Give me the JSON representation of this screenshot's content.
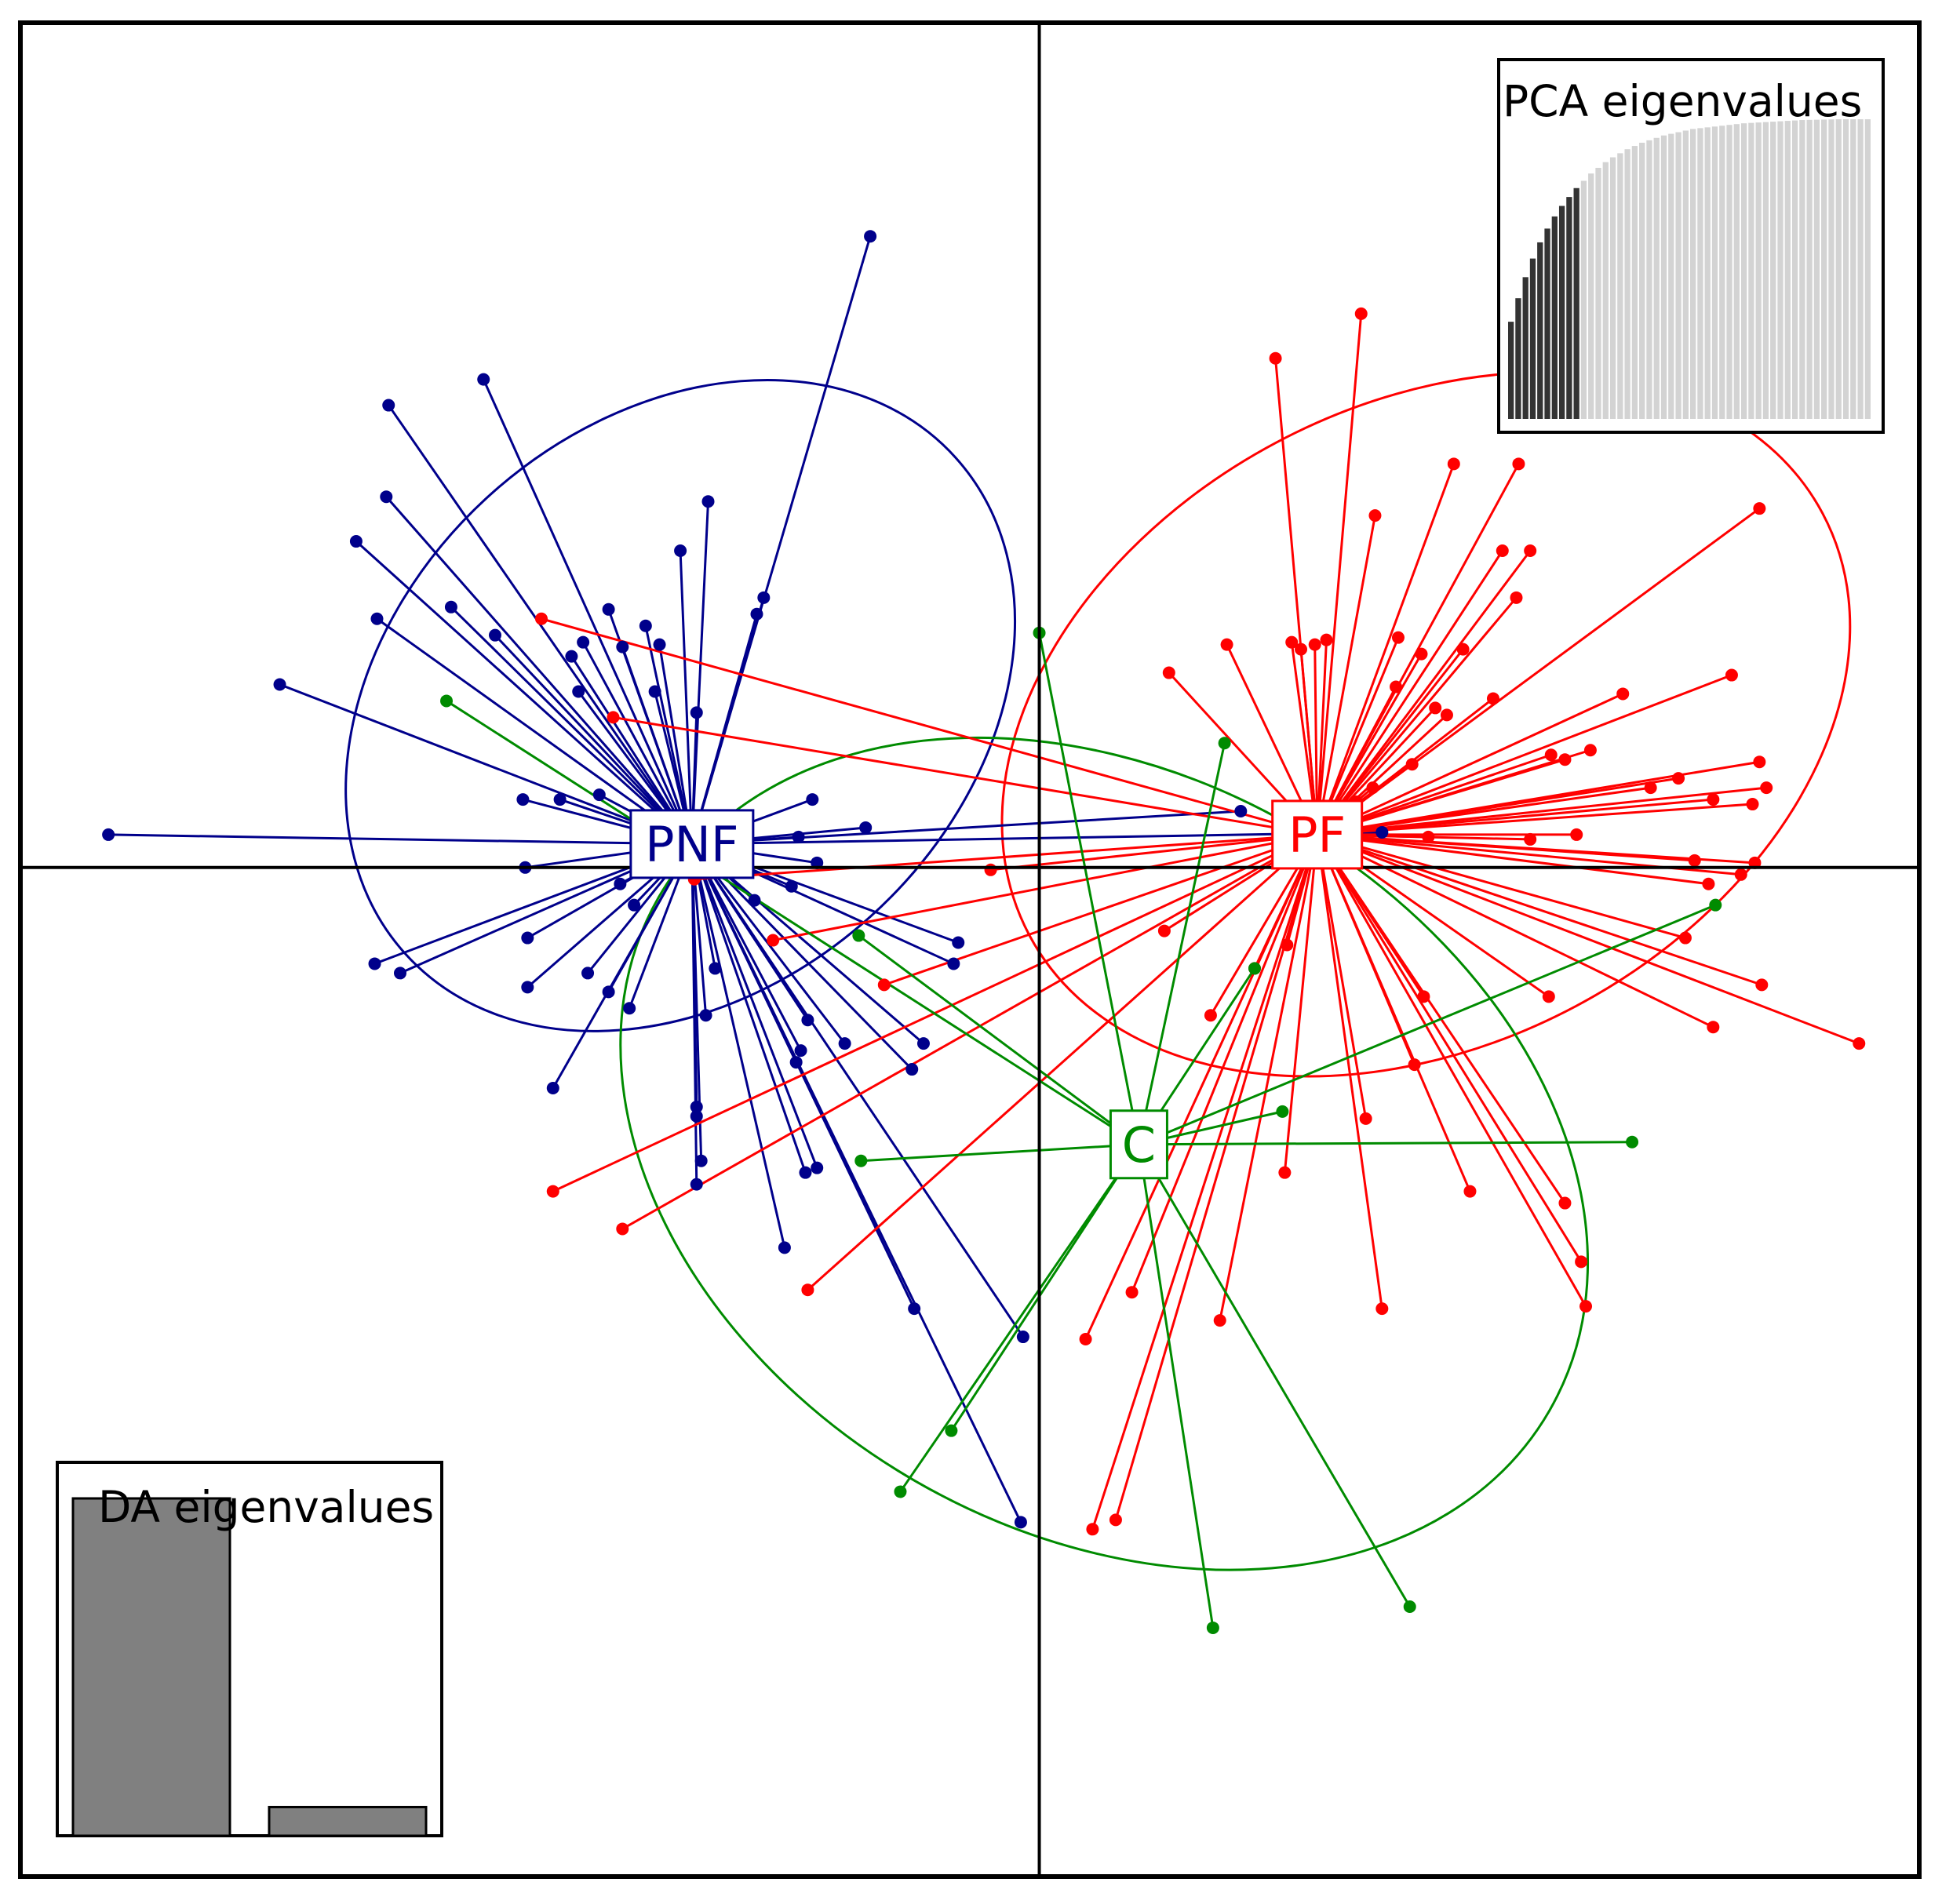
{
  "chart_data": {
    "type": "scatter",
    "title": "",
    "xlabel": "",
    "ylabel": "",
    "xlim": [
      -4.4,
      3.8
    ],
    "ylim": [
      -4.3,
      3.6
    ],
    "grid": false,
    "axes_lines": "cross at origin",
    "series": [
      {
        "name": "PNF",
        "color": "#00008B",
        "centroid": [
          -1.5,
          0.1
        ],
        "ellipse": {
          "cx": -1.55,
          "cy": 0.69,
          "rx": 1.6,
          "ry": 1.21,
          "angle_deg": -42
        },
        "points": [
          [
            -0.73,
            2.69
          ],
          [
            -2.4,
            2.08
          ],
          [
            -2.81,
            1.97
          ],
          [
            -2.82,
            1.58
          ],
          [
            -2.95,
            1.39
          ],
          [
            -2.86,
            1.06
          ],
          [
            -2.54,
            1.11
          ],
          [
            -2.35,
            0.99
          ],
          [
            -1.43,
            1.56
          ],
          [
            -1.55,
            1.35
          ],
          [
            -1.19,
            1.15
          ],
          [
            -1.22,
            1.08
          ],
          [
            -3.28,
            0.78
          ],
          [
            -4.02,
            0.14
          ],
          [
            -1.86,
            1.1
          ],
          [
            -1.7,
            1.03
          ],
          [
            -1.97,
            0.96
          ],
          [
            -2.02,
            0.9
          ],
          [
            -1.99,
            0.75
          ],
          [
            -1.8,
            0.94
          ],
          [
            -1.64,
            0.95
          ],
          [
            -1.66,
            0.75
          ],
          [
            -1.48,
            0.66
          ],
          [
            -2.23,
            0.29
          ],
          [
            -2.07,
            0.29
          ],
          [
            -1.9,
            0.31
          ],
          [
            -0.98,
            0.29
          ],
          [
            -1.04,
            0.13
          ],
          [
            -0.75,
            0.17
          ],
          [
            -0.96,
            0.02
          ],
          [
            -1.07,
            -0.08
          ],
          [
            -1.23,
            -0.14
          ],
          [
            -2.22,
            0.0
          ],
          [
            -1.81,
            -0.07
          ],
          [
            -1.75,
            -0.16
          ],
          [
            -2.21,
            -0.3
          ],
          [
            -2.21,
            -0.51
          ],
          [
            -2.87,
            -0.41
          ],
          [
            -2.76,
            -0.45
          ],
          [
            -1.95,
            -0.45
          ],
          [
            -1.86,
            -0.53
          ],
          [
            -1.77,
            -0.6
          ],
          [
            -1.4,
            -0.43
          ],
          [
            -1.44,
            -0.63
          ],
          [
            -0.35,
            -0.32
          ],
          [
            -0.37,
            -0.41
          ],
          [
            -1.0,
            -0.65
          ],
          [
            -0.84,
            -0.75
          ],
          [
            -1.03,
            -0.78
          ],
          [
            -0.5,
            -0.75
          ],
          [
            -1.05,
            -0.83
          ],
          [
            -0.55,
            -0.86
          ],
          [
            -2.1,
            -0.94
          ],
          [
            -1.48,
            -1.02
          ],
          [
            -1.48,
            -1.06
          ],
          [
            -1.46,
            -1.25
          ],
          [
            -1.48,
            -1.35
          ],
          [
            -1.01,
            -1.3
          ],
          [
            -0.96,
            -1.28
          ],
          [
            -1.1,
            -1.62
          ],
          [
            -0.54,
            -1.88
          ],
          [
            -0.07,
            -2.0
          ],
          [
            -0.08,
            -2.79
          ],
          [
            0.87,
            0.24
          ],
          [
            1.48,
            0.15
          ]
        ]
      },
      {
        "name": "PF",
        "color": "#FF0000",
        "centroid": [
          1.2,
          0.14
        ],
        "ellipse": {
          "cx": 1.67,
          "cy": 0.61,
          "rx": 1.94,
          "ry": 1.36,
          "angle_deg": -28
        },
        "points": [
          [
            1.39,
            2.36
          ],
          [
            1.02,
            2.17
          ],
          [
            1.79,
            1.72
          ],
          [
            2.07,
            1.72
          ],
          [
            1.45,
            1.5
          ],
          [
            2.0,
            1.35
          ],
          [
            2.12,
            1.35
          ],
          [
            2.06,
            1.15
          ],
          [
            0.81,
            0.95
          ],
          [
            0.56,
            0.83
          ],
          [
            1.19,
            0.95
          ],
          [
            1.24,
            0.97
          ],
          [
            1.65,
            0.91
          ],
          [
            1.55,
            0.98
          ],
          [
            1.83,
            0.93
          ],
          [
            1.54,
            0.77
          ],
          [
            1.71,
            0.68
          ],
          [
            1.96,
            0.72
          ],
          [
            1.76,
            0.65
          ],
          [
            2.52,
            0.74
          ],
          [
            2.99,
            0.82
          ],
          [
            3.11,
            1.53
          ],
          [
            1.09,
            0.96
          ],
          [
            1.13,
            0.93
          ],
          [
            2.38,
            0.5
          ],
          [
            2.21,
            0.48
          ],
          [
            2.27,
            0.46
          ],
          [
            2.76,
            0.38
          ],
          [
            2.64,
            0.34
          ],
          [
            2.91,
            0.29
          ],
          [
            3.08,
            0.27
          ],
          [
            3.14,
            0.34
          ],
          [
            3.11,
            0.45
          ],
          [
            1.44,
            0.34
          ],
          [
            1.61,
            0.44
          ],
          [
            1.37,
            0.28
          ],
          [
            1.68,
            0.13
          ],
          [
            2.32,
            0.14
          ],
          [
            2.12,
            0.12
          ],
          [
            2.83,
            0.03
          ],
          [
            2.89,
            -0.07
          ],
          [
            3.03,
            -0.03
          ],
          [
            3.09,
            0.02
          ],
          [
            2.79,
            -0.3
          ],
          [
            3.12,
            -0.5
          ],
          [
            3.54,
            -0.75
          ],
          [
            2.2,
            -0.55
          ],
          [
            1.66,
            -0.55
          ],
          [
            1.62,
            -0.84
          ],
          [
            1.86,
            -1.38
          ],
          [
            2.34,
            -1.68
          ],
          [
            2.36,
            -1.87
          ],
          [
            2.27,
            -1.43
          ],
          [
            2.91,
            -0.68
          ],
          [
            1.48,
            -1.88
          ],
          [
            0.4,
            -1.81
          ],
          [
            0.2,
            -2.01
          ],
          [
            0.23,
            -2.82
          ],
          [
            0.33,
            -2.78
          ],
          [
            0.78,
            -1.93
          ],
          [
            1.07,
            -0.33
          ],
          [
            1.06,
            -1.3
          ],
          [
            1.41,
            -1.07
          ],
          [
            0.93,
            -0.43
          ],
          [
            0.74,
            -0.63
          ],
          [
            0.54,
            -0.27
          ],
          [
            -0.21,
            -0.01
          ],
          [
            -0.67,
            -0.5
          ],
          [
            -1.15,
            -0.31
          ],
          [
            -1.49,
            -0.05
          ],
          [
            -2.1,
            -1.38
          ],
          [
            -1.8,
            -1.54
          ],
          [
            -1.0,
            -1.8
          ],
          [
            -2.15,
            1.06
          ],
          [
            -1.84,
            0.64
          ]
        ]
      },
      {
        "name": "C",
        "color": "#008B00",
        "centroid": [
          0.43,
          -1.18
        ],
        "ellipse": {
          "cx": 0.28,
          "cy": -1.22,
          "rx": 2.22,
          "ry": 1.61,
          "angle_deg": 30
        },
        "points": [
          [
            0.8,
            0.53
          ],
          [
            0.0,
            1.0
          ],
          [
            -2.56,
            0.71
          ],
          [
            -0.78,
            -0.29
          ],
          [
            0.93,
            -0.43
          ],
          [
            2.92,
            -0.16
          ],
          [
            1.05,
            -1.04
          ],
          [
            2.56,
            -1.17
          ],
          [
            -0.77,
            -1.25
          ],
          [
            -0.38,
            -2.4
          ],
          [
            -0.6,
            -2.66
          ],
          [
            0.75,
            -3.24
          ],
          [
            1.6,
            -3.15
          ]
        ]
      }
    ],
    "centroid_labels": [
      "PNF",
      "PF",
      "C"
    ],
    "insets": [
      {
        "title": "PCA eigenvalues",
        "position": "top-right",
        "retained_components": 10,
        "values": [
          12.0,
          14.9,
          17.5,
          19.8,
          21.8,
          23.5,
          25.0,
          26.3,
          27.4,
          28.5,
          29.4,
          30.3,
          31.0,
          31.7,
          32.3,
          32.8,
          33.3,
          33.7,
          34.1,
          34.4,
          34.7,
          35.0,
          35.2,
          35.4,
          35.6,
          35.8,
          35.9,
          36.0,
          36.1,
          36.2,
          36.3,
          36.4,
          36.5,
          36.55,
          36.6,
          36.65,
          36.7,
          36.75,
          36.8,
          36.85,
          36.9,
          36.92,
          36.94,
          36.96,
          36.98,
          37.0,
          37.0,
          37.0,
          37.0,
          37.0
        ]
      },
      {
        "title": "DA eigenvalues",
        "position": "bottom-left",
        "values": [
          100,
          8.5
        ]
      }
    ]
  }
}
